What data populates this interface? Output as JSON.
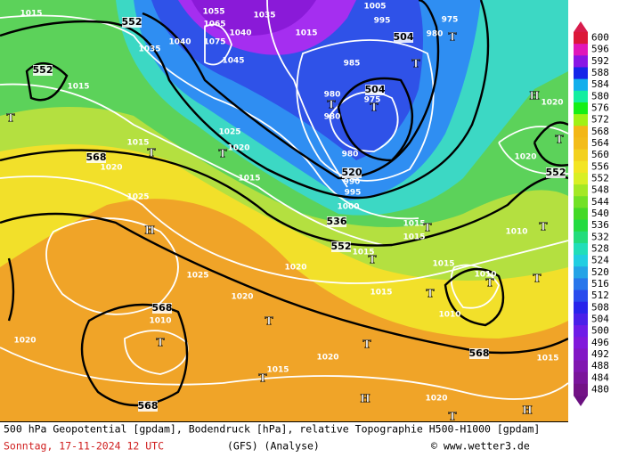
{
  "map": {
    "geopotential_labels": [
      "552",
      "552",
      "568",
      "504",
      "504",
      "520",
      "536",
      "552",
      "568",
      "568",
      "568",
      "552"
    ],
    "pressure_labels": [
      "1015",
      "1015",
      "1035",
      "1040",
      "1055",
      "1065",
      "1075",
      "1045",
      "1040",
      "1035",
      "1015",
      "1005",
      "995",
      "975",
      "980",
      "985",
      "980",
      "980",
      "975",
      "980",
      "990",
      "995",
      "1000",
      "1015",
      "1020",
      "1025",
      "1025",
      "1020",
      "1015",
      "1020",
      "1020",
      "1015",
      "1015",
      "1015",
      "1020",
      "1025",
      "1020",
      "1015",
      "1015",
      "1010",
      "1010",
      "1010",
      "1020",
      "1020",
      "1015",
      "1020",
      "1015",
      "1010"
    ],
    "pressure_centers": [
      "T",
      "T",
      "H",
      "T",
      "T",
      "T",
      "T",
      "T",
      "H",
      "T",
      "T",
      "T",
      "T",
      "T",
      "H",
      "T",
      "H",
      "T",
      "T",
      "T",
      "T",
      "T",
      "T"
    ]
  },
  "legend": {
    "labels": [
      600,
      596,
      592,
      588,
      584,
      580,
      576,
      572,
      568,
      564,
      560,
      556,
      552,
      548,
      544,
      540,
      536,
      532,
      528,
      524,
      520,
      516,
      512,
      508,
      504,
      500,
      496,
      492,
      488,
      484,
      480
    ]
  },
  "footer": {
    "description": "500 hPa Geopotential [gpdam], Bodendruck [hPa], relative Topographie H500-H1000 [gpdam]",
    "date": "Sonntag, 17-11-2024  12 UTC",
    "model": "(GFS)  (Analyse)",
    "credit": "© www.wetter3.de"
  }
}
